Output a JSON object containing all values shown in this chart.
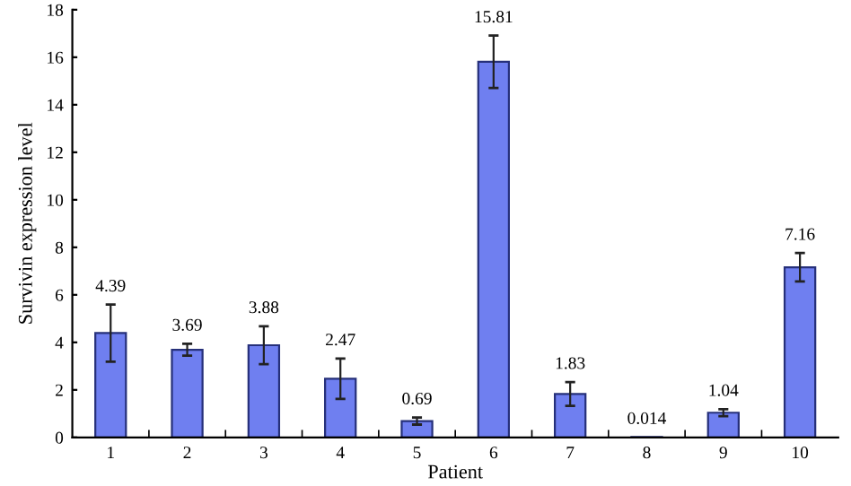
{
  "chart_data": {
    "type": "bar",
    "xlabel": "Patient",
    "ylabel": "Survivin expression level",
    "categories": [
      "1",
      "2",
      "3",
      "4",
      "5",
      "6",
      "7",
      "8",
      "9",
      "10"
    ],
    "values": [
      4.39,
      3.69,
      3.88,
      2.47,
      0.69,
      15.81,
      1.83,
      0.014,
      1.04,
      7.16
    ],
    "errors": [
      1.2,
      0.25,
      0.8,
      0.85,
      0.15,
      1.1,
      0.5,
      null,
      0.15,
      0.6
    ],
    "color": "#6f7ff0",
    "ylim": [
      0,
      18
    ],
    "yticks": [
      0,
      2,
      4,
      6,
      8,
      10,
      12,
      14,
      16,
      18
    ],
    "grid": false,
    "data_labels": true
  }
}
